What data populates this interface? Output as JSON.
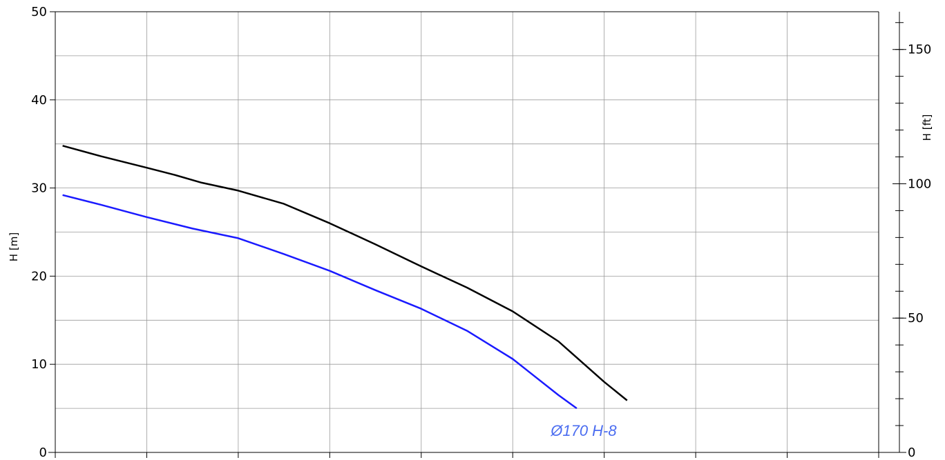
{
  "chart_data": {
    "type": "line",
    "xlabel": "",
    "ylabel": "H [m]",
    "ylabel_right": "H [ft]",
    "xlim": [
      0,
      9
    ],
    "ylim": [
      0,
      50
    ],
    "ylim_right": [
      0,
      164.04
    ],
    "y_ticks": [
      "0",
      "10",
      "20",
      "30",
      "40",
      "50"
    ],
    "y_right_ticks": [
      "0",
      "50",
      "100",
      "150"
    ],
    "y_right_tick_values": [
      0,
      50,
      100,
      150
    ],
    "y_right_minor_step": 10,
    "x_grid_count": 9,
    "y_grid_step": 5,
    "grid": true,
    "series": [
      {
        "color": "#000000",
        "points": [
          [
            0.08,
            34.8
          ],
          [
            0.5,
            33.6
          ],
          [
            1.0,
            32.3
          ],
          [
            1.3,
            31.5
          ],
          [
            1.6,
            30.6
          ],
          [
            2.0,
            29.7
          ],
          [
            2.5,
            28.2
          ],
          [
            3.0,
            26.0
          ],
          [
            3.5,
            23.6
          ],
          [
            4.0,
            21.1
          ],
          [
            4.5,
            18.7
          ],
          [
            5.0,
            16.0
          ],
          [
            5.5,
            12.6
          ],
          [
            6.0,
            8.0
          ],
          [
            6.25,
            5.9
          ]
        ]
      },
      {
        "color": "#1a1aff",
        "label": "Ø170 H-8",
        "label_color": "#4a6cf0",
        "points": [
          [
            0.08,
            29.2
          ],
          [
            0.5,
            28.1
          ],
          [
            1.0,
            26.7
          ],
          [
            1.5,
            25.4
          ],
          [
            2.0,
            24.3
          ],
          [
            2.5,
            22.5
          ],
          [
            3.0,
            20.6
          ],
          [
            3.5,
            18.4
          ],
          [
            4.0,
            16.3
          ],
          [
            4.5,
            13.8
          ],
          [
            5.0,
            10.6
          ],
          [
            5.5,
            6.5
          ],
          [
            5.7,
            5.0
          ]
        ]
      }
    ]
  }
}
